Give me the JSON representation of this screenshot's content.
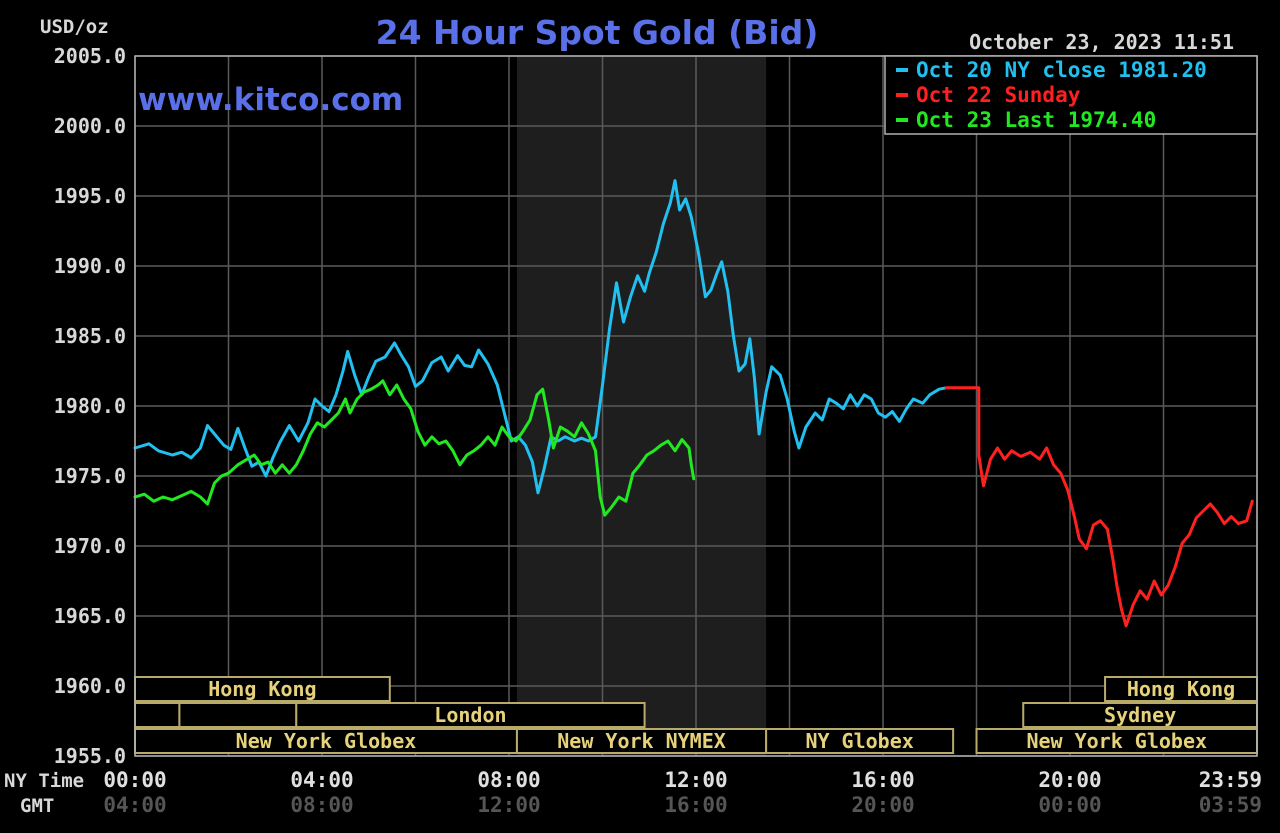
{
  "chart_data": {
    "type": "line",
    "title": "24 Hour Spot Gold (Bid)",
    "units_label": "USD/oz",
    "website": "www.kitco.com",
    "timestamp": "October 23, 2023 11:51",
    "ylim": [
      1955,
      2005
    ],
    "y_ticks": [
      "2005.0",
      "2000.0",
      "1995.0",
      "1990.0",
      "1985.0",
      "1980.0",
      "1975.0",
      "1970.0",
      "1965.0",
      "1960.0",
      "1955.0"
    ],
    "x_range_hours": [
      0,
      24
    ],
    "x_ticks_label_ny": "NY Time",
    "x_ticks_label_gmt": "GMT",
    "x_ticks": [
      {
        "hour": 0,
        "ny": "00:00",
        "gmt": "04:00"
      },
      {
        "hour": 4,
        "ny": "04:00",
        "gmt": "08:00"
      },
      {
        "hour": 8,
        "ny": "08:00",
        "gmt": "12:00"
      },
      {
        "hour": 12,
        "ny": "12:00",
        "gmt": "16:00"
      },
      {
        "hour": 16,
        "ny": "16:00",
        "gmt": "20:00"
      },
      {
        "hour": 20,
        "ny": "20:00",
        "gmt": "00:00"
      },
      {
        "hour": 24,
        "ny": "23:59",
        "gmt": "03:59"
      }
    ],
    "nymex_shaded_hours": [
      8.17,
      13.5
    ],
    "grid": true,
    "legend_placement": "top-right",
    "legend": [
      {
        "text": "Oct 20 NY close 1981.20",
        "color": "#22c0f0"
      },
      {
        "text": "Oct 22 Sunday",
        "color": "#ff2020"
      },
      {
        "text": "Oct 23 Last 1974.40",
        "color": "#22e822"
      }
    ],
    "sessions": [
      {
        "label": "Hong Kong",
        "row": 0,
        "start": 0,
        "end": 5.45
      },
      {
        "label": "Hong Kong",
        "row": 0,
        "start": 20.75,
        "end": 24
      },
      {
        "label": "",
        "row": 1,
        "start": 0,
        "end": 0.95
      },
      {
        "label": "",
        "row": 1,
        "start": 0.95,
        "end": 3.45
      },
      {
        "label": "London",
        "row": 1,
        "start": 3.45,
        "end": 10.9
      },
      {
        "label": "Sydney",
        "row": 1,
        "start": 19.0,
        "end": 24
      },
      {
        "label": "New York Globex",
        "row": 2,
        "start": 0,
        "end": 8.17
      },
      {
        "label": "New York NYMEX",
        "row": 2,
        "start": 8.17,
        "end": 13.5
      },
      {
        "label": "NY Globex",
        "row": 2,
        "start": 13.5,
        "end": 17.5
      },
      {
        "label": "New York Globex",
        "row": 2,
        "start": 18.0,
        "end": 24
      }
    ],
    "series": [
      {
        "name": "Oct 20",
        "color": "#22c0f0",
        "points": [
          [
            0,
            1977
          ],
          [
            0.3,
            1977.3
          ],
          [
            0.5,
            1976.8
          ],
          [
            0.8,
            1976.5
          ],
          [
            1.0,
            1976.7
          ],
          [
            1.2,
            1976.3
          ],
          [
            1.4,
            1977.0
          ],
          [
            1.55,
            1978.6
          ],
          [
            1.7,
            1978.0
          ],
          [
            1.9,
            1977.2
          ],
          [
            2.05,
            1976.9
          ],
          [
            2.2,
            1978.4
          ],
          [
            2.35,
            1977.0
          ],
          [
            2.5,
            1975.7
          ],
          [
            2.65,
            1976.0
          ],
          [
            2.8,
            1975.0
          ],
          [
            2.95,
            1976.3
          ],
          [
            3.1,
            1977.4
          ],
          [
            3.3,
            1978.6
          ],
          [
            3.5,
            1977.5
          ],
          [
            3.7,
            1978.8
          ],
          [
            3.85,
            1980.5
          ],
          [
            4.0,
            1980.0
          ],
          [
            4.15,
            1979.6
          ],
          [
            4.3,
            1980.8
          ],
          [
            4.45,
            1982.5
          ],
          [
            4.55,
            1983.9
          ],
          [
            4.7,
            1982.2
          ],
          [
            4.85,
            1980.8
          ],
          [
            5.0,
            1982.1
          ],
          [
            5.15,
            1983.2
          ],
          [
            5.35,
            1983.5
          ],
          [
            5.55,
            1984.5
          ],
          [
            5.7,
            1983.6
          ],
          [
            5.85,
            1982.8
          ],
          [
            6.0,
            1981.4
          ],
          [
            6.15,
            1981.8
          ],
          [
            6.35,
            1983.1
          ],
          [
            6.55,
            1983.5
          ],
          [
            6.7,
            1982.5
          ],
          [
            6.9,
            1983.6
          ],
          [
            7.05,
            1982.9
          ],
          [
            7.2,
            1982.8
          ],
          [
            7.35,
            1984.0
          ],
          [
            7.55,
            1983.0
          ],
          [
            7.75,
            1981.5
          ],
          [
            7.9,
            1979.5
          ],
          [
            8.05,
            1977.5
          ],
          [
            8.2,
            1977.8
          ],
          [
            8.35,
            1977.2
          ],
          [
            8.5,
            1976.0
          ],
          [
            8.62,
            1973.8
          ],
          [
            8.75,
            1975.5
          ],
          [
            8.9,
            1977.8
          ],
          [
            9.05,
            1977.5
          ],
          [
            9.2,
            1977.8
          ],
          [
            9.4,
            1977.5
          ],
          [
            9.55,
            1977.7
          ],
          [
            9.7,
            1977.5
          ],
          [
            9.85,
            1977.8
          ],
          [
            10.0,
            1981.5
          ],
          [
            10.15,
            1985.5
          ],
          [
            10.3,
            1988.8
          ],
          [
            10.45,
            1986.0
          ],
          [
            10.6,
            1987.8
          ],
          [
            10.75,
            1989.3
          ],
          [
            10.9,
            1988.2
          ],
          [
            11.0,
            1989.5
          ],
          [
            11.15,
            1991.0
          ],
          [
            11.3,
            1993.0
          ],
          [
            11.45,
            1994.5
          ],
          [
            11.55,
            1996.1
          ],
          [
            11.65,
            1994.0
          ],
          [
            11.78,
            1994.8
          ],
          [
            11.9,
            1993.5
          ],
          [
            12.05,
            1991.0
          ],
          [
            12.2,
            1987.8
          ],
          [
            12.32,
            1988.3
          ],
          [
            12.45,
            1989.5
          ],
          [
            12.55,
            1990.3
          ],
          [
            12.68,
            1988.2
          ],
          [
            12.8,
            1985.0
          ],
          [
            12.92,
            1982.5
          ],
          [
            13.05,
            1983.0
          ],
          [
            13.15,
            1984.8
          ],
          [
            13.25,
            1982.0
          ],
          [
            13.35,
            1978.0
          ],
          [
            13.5,
            1981.0
          ],
          [
            13.62,
            1982.8
          ],
          [
            13.8,
            1982.2
          ],
          [
            13.95,
            1980.5
          ],
          [
            14.1,
            1978.2
          ],
          [
            14.2,
            1977.0
          ],
          [
            14.35,
            1978.5
          ],
          [
            14.55,
            1979.5
          ],
          [
            14.7,
            1979.0
          ],
          [
            14.85,
            1980.5
          ],
          [
            15.0,
            1980.2
          ],
          [
            15.15,
            1979.8
          ],
          [
            15.3,
            1980.8
          ],
          [
            15.45,
            1980.0
          ],
          [
            15.6,
            1980.8
          ],
          [
            15.75,
            1980.5
          ],
          [
            15.9,
            1979.5
          ],
          [
            16.05,
            1979.2
          ],
          [
            16.2,
            1979.6
          ],
          [
            16.35,
            1978.9
          ],
          [
            16.5,
            1979.8
          ],
          [
            16.65,
            1980.5
          ],
          [
            16.85,
            1980.2
          ],
          [
            17.0,
            1980.8
          ],
          [
            17.2,
            1981.2
          ],
          [
            17.35,
            1981.3
          ]
        ]
      },
      {
        "name": "Oct 22",
        "color": "#ff2020",
        "points": [
          [
            17.35,
            1981.3
          ],
          [
            18.05,
            1981.3
          ],
          [
            18.05,
            1976.5
          ],
          [
            18.15,
            1974.3
          ],
          [
            18.3,
            1976.2
          ],
          [
            18.45,
            1977.0
          ],
          [
            18.6,
            1976.2
          ],
          [
            18.75,
            1976.8
          ],
          [
            18.95,
            1976.4
          ],
          [
            19.15,
            1976.7
          ],
          [
            19.35,
            1976.2
          ],
          [
            19.5,
            1977.0
          ],
          [
            19.65,
            1975.8
          ],
          [
            19.8,
            1975.2
          ],
          [
            19.95,
            1974.0
          ],
          [
            20.1,
            1972.0
          ],
          [
            20.2,
            1970.5
          ],
          [
            20.35,
            1969.8
          ],
          [
            20.5,
            1971.5
          ],
          [
            20.65,
            1971.8
          ],
          [
            20.8,
            1971.2
          ],
          [
            20.92,
            1969.0
          ],
          [
            21.0,
            1967.2
          ],
          [
            21.1,
            1965.5
          ],
          [
            21.2,
            1964.3
          ],
          [
            21.35,
            1965.8
          ],
          [
            21.5,
            1966.8
          ],
          [
            21.65,
            1966.2
          ],
          [
            21.8,
            1967.5
          ],
          [
            21.95,
            1966.5
          ],
          [
            22.1,
            1967.2
          ],
          [
            22.25,
            1968.5
          ],
          [
            22.4,
            1970.2
          ],
          [
            22.55,
            1970.8
          ],
          [
            22.7,
            1972.0
          ],
          [
            22.85,
            1972.5
          ],
          [
            23.0,
            1973.0
          ],
          [
            23.15,
            1972.4
          ],
          [
            23.3,
            1971.6
          ],
          [
            23.45,
            1972.1
          ],
          [
            23.6,
            1971.6
          ],
          [
            23.78,
            1971.8
          ],
          [
            23.9,
            1973.2
          ]
        ]
      },
      {
        "name": "Oct 23",
        "color": "#22e822",
        "points": [
          [
            0,
            1973.5
          ],
          [
            0.2,
            1973.7
          ],
          [
            0.4,
            1973.2
          ],
          [
            0.6,
            1973.5
          ],
          [
            0.8,
            1973.3
          ],
          [
            1.0,
            1973.6
          ],
          [
            1.2,
            1973.9
          ],
          [
            1.4,
            1973.5
          ],
          [
            1.55,
            1973.0
          ],
          [
            1.7,
            1974.5
          ],
          [
            1.85,
            1975.0
          ],
          [
            2.0,
            1975.2
          ],
          [
            2.2,
            1975.8
          ],
          [
            2.4,
            1976.2
          ],
          [
            2.55,
            1976.5
          ],
          [
            2.7,
            1975.8
          ],
          [
            2.85,
            1976.0
          ],
          [
            3.0,
            1975.2
          ],
          [
            3.15,
            1975.8
          ],
          [
            3.3,
            1975.2
          ],
          [
            3.45,
            1975.8
          ],
          [
            3.6,
            1976.8
          ],
          [
            3.75,
            1978.0
          ],
          [
            3.9,
            1978.8
          ],
          [
            4.05,
            1978.5
          ],
          [
            4.2,
            1979.0
          ],
          [
            4.35,
            1979.5
          ],
          [
            4.5,
            1980.5
          ],
          [
            4.6,
            1979.5
          ],
          [
            4.75,
            1980.5
          ],
          [
            4.9,
            1981.0
          ],
          [
            5.05,
            1981.2
          ],
          [
            5.2,
            1981.5
          ],
          [
            5.3,
            1981.8
          ],
          [
            5.45,
            1980.8
          ],
          [
            5.6,
            1981.5
          ],
          [
            5.75,
            1980.5
          ],
          [
            5.9,
            1979.8
          ],
          [
            6.05,
            1978.2
          ],
          [
            6.2,
            1977.2
          ],
          [
            6.35,
            1977.8
          ],
          [
            6.5,
            1977.3
          ],
          [
            6.65,
            1977.5
          ],
          [
            6.8,
            1976.8
          ],
          [
            6.95,
            1975.8
          ],
          [
            7.1,
            1976.5
          ],
          [
            7.25,
            1976.8
          ],
          [
            7.4,
            1977.2
          ],
          [
            7.55,
            1977.8
          ],
          [
            7.7,
            1977.2
          ],
          [
            7.85,
            1978.5
          ],
          [
            8.0,
            1977.8
          ],
          [
            8.15,
            1977.5
          ],
          [
            8.3,
            1978.2
          ],
          [
            8.45,
            1979.0
          ],
          [
            8.6,
            1980.8
          ],
          [
            8.72,
            1981.2
          ],
          [
            8.85,
            1979.0
          ],
          [
            8.95,
            1977.0
          ],
          [
            9.1,
            1978.5
          ],
          [
            9.25,
            1978.2
          ],
          [
            9.4,
            1977.8
          ],
          [
            9.55,
            1978.8
          ],
          [
            9.7,
            1978.0
          ],
          [
            9.85,
            1976.8
          ],
          [
            9.95,
            1973.5
          ],
          [
            10.05,
            1972.2
          ],
          [
            10.2,
            1972.8
          ],
          [
            10.35,
            1973.5
          ],
          [
            10.5,
            1973.2
          ],
          [
            10.65,
            1975.2
          ],
          [
            10.8,
            1975.8
          ],
          [
            10.95,
            1976.5
          ],
          [
            11.1,
            1976.8
          ],
          [
            11.25,
            1977.2
          ],
          [
            11.4,
            1977.5
          ],
          [
            11.55,
            1976.8
          ],
          [
            11.7,
            1977.6
          ],
          [
            11.85,
            1977.0
          ],
          [
            11.9,
            1975.8
          ],
          [
            11.95,
            1974.8
          ]
        ]
      }
    ]
  }
}
